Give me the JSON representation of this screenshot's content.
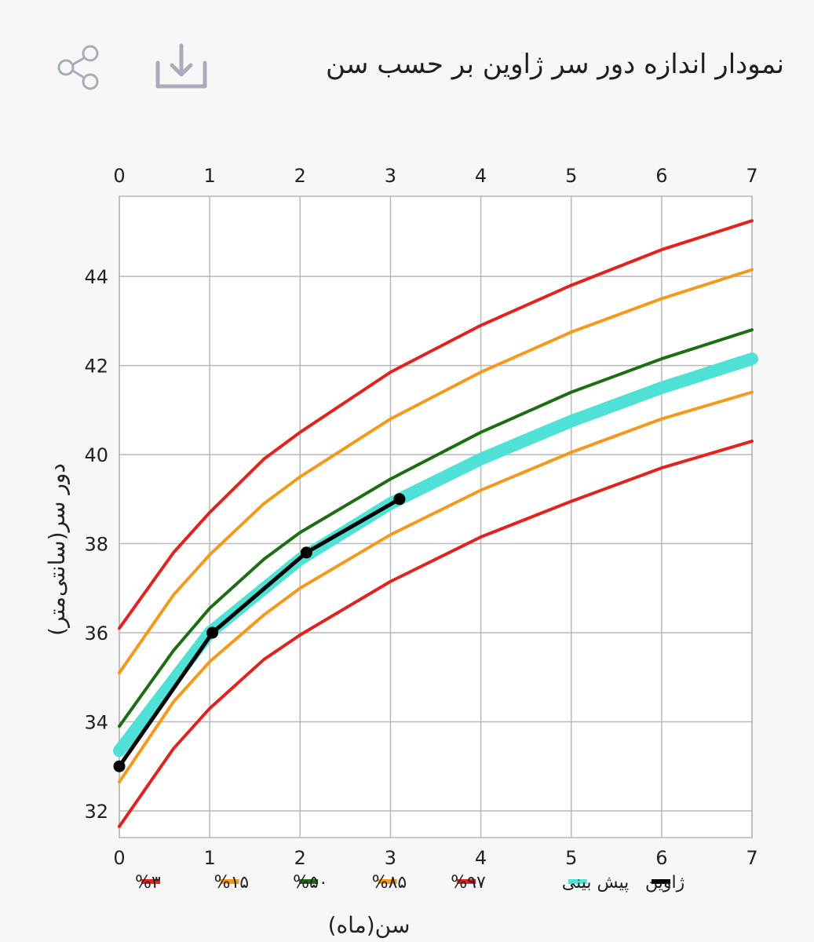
{
  "header": {
    "title": "نمودار اندازه دور سر ژاوین بر حسب سن",
    "share_icon": "share-icon",
    "download_icon": "download-icon"
  },
  "chart_data": {
    "type": "line",
    "xlabel": "سن(ماه)",
    "ylabel": "دور سر(سانتی‌متر)",
    "xlim": [
      0,
      7
    ],
    "ylim": [
      31.4,
      45.8
    ],
    "x_ticks": [
      0,
      1,
      2,
      3,
      4,
      5,
      6,
      7
    ],
    "y_ticks": [
      32,
      34,
      36,
      38,
      40,
      42,
      44
    ],
    "x_axis_top_and_bottom": true,
    "grid": true,
    "legend_position": "bottom",
    "series": [
      {
        "name": "%۳",
        "color": "#e0231e",
        "width": 4,
        "x": [
          0,
          0.6,
          1,
          1.6,
          2,
          3,
          4,
          5,
          6,
          7
        ],
        "y": [
          31.65,
          33.4,
          34.3,
          35.4,
          35.95,
          37.15,
          38.15,
          38.95,
          39.7,
          40.3
        ]
      },
      {
        "name": "%۱۵",
        "color": "#f39a1e",
        "width": 4,
        "x": [
          0,
          0.6,
          1,
          1.6,
          2,
          3,
          4,
          5,
          6,
          7
        ],
        "y": [
          32.65,
          34.45,
          35.35,
          36.4,
          37.0,
          38.2,
          39.2,
          40.05,
          40.8,
          41.4
        ]
      },
      {
        "name": "%۵۰",
        "color": "#1d6e12",
        "width": 4,
        "x": [
          0,
          0.6,
          1,
          1.6,
          2,
          3,
          4,
          5,
          6,
          7
        ],
        "y": [
          33.9,
          35.6,
          36.55,
          37.65,
          38.25,
          39.45,
          40.5,
          41.4,
          42.15,
          42.8
        ]
      },
      {
        "name": "%۸۵",
        "color": "#f39a1e",
        "width": 4,
        "x": [
          0,
          0.6,
          1,
          1.6,
          2,
          3,
          4,
          5,
          6,
          7
        ],
        "y": [
          35.1,
          36.85,
          37.75,
          38.9,
          39.5,
          40.8,
          41.85,
          42.75,
          43.5,
          44.15
        ]
      },
      {
        "name": "%۹۷",
        "color": "#e0231e",
        "width": 4,
        "x": [
          0,
          0.6,
          1,
          1.6,
          2,
          3,
          4,
          5,
          6,
          7
        ],
        "y": [
          36.1,
          37.8,
          38.7,
          39.9,
          40.5,
          41.85,
          42.9,
          43.8,
          44.6,
          45.25
        ]
      },
      {
        "name": "پیش بینی",
        "color": "#4fe0d6",
        "width": 16,
        "x": [
          0,
          1,
          2,
          3,
          4,
          5,
          6,
          7
        ],
        "y": [
          33.35,
          36.0,
          37.65,
          38.9,
          39.9,
          40.75,
          41.5,
          42.15
        ]
      },
      {
        "name": "ژاوین",
        "color": "#000000",
        "width": 5,
        "markers": true,
        "x": [
          0,
          1.03,
          2.07,
          3.1
        ],
        "y": [
          33.0,
          36.0,
          37.8,
          39.0
        ]
      }
    ]
  }
}
